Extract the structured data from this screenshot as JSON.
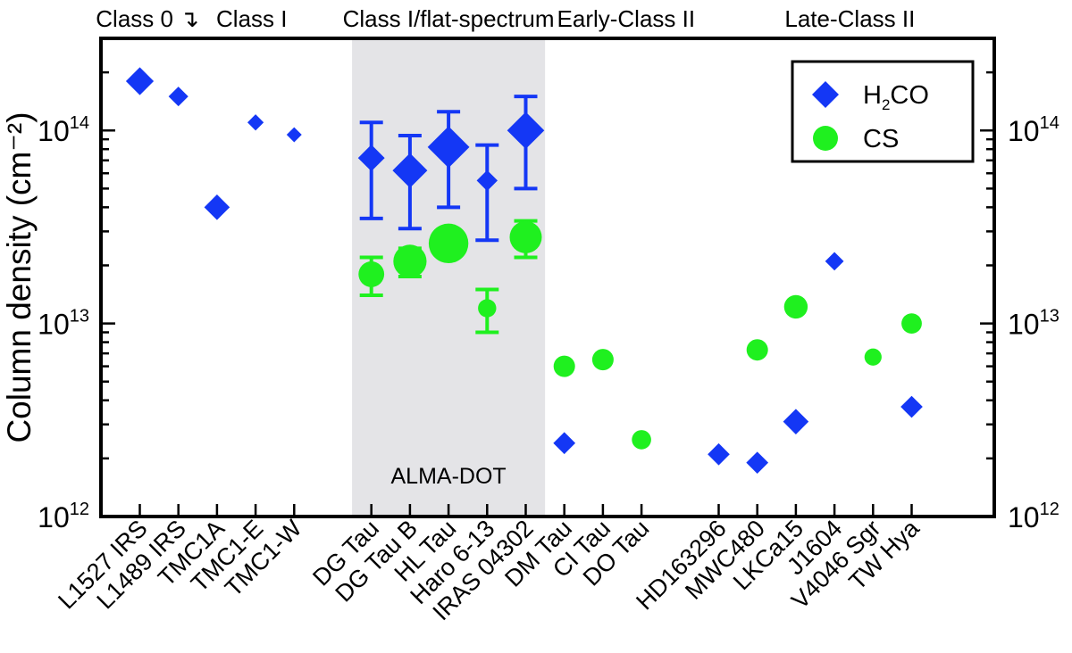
{
  "chart_data": {
    "type": "scatter",
    "yscale": "log",
    "ylim": [
      1000000000000.0,
      300000000000000.0
    ],
    "ylabel": "Column density (cm⁻²)",
    "y_ticks": [
      {
        "value": 1000000000000.0,
        "base": "10",
        "exp": "12"
      },
      {
        "value": 10000000000000.0,
        "base": "10",
        "exp": "13"
      },
      {
        "value": 100000000000000.0,
        "base": "10",
        "exp": "14"
      }
    ],
    "categories": [
      "L1527 IRS",
      "L1489 IRS",
      "TMC1A",
      "TMC1-E",
      "TMC1-W",
      "DG Tau",
      "DG Tau B",
      "HL Tau",
      "Haro 6-13",
      "IRAS 04302",
      "DM Tau",
      "CI Tau",
      "DO Tau",
      "HD163296",
      "MWC480",
      "LKCa15",
      "J1604",
      "V4046 Sgr",
      "TW Hya"
    ],
    "category_positions": [
      1,
      2,
      3,
      4,
      5,
      7,
      8,
      9,
      10,
      11,
      12,
      13,
      14,
      16,
      17,
      18,
      19,
      20,
      21
    ],
    "class_groups": [
      {
        "label": "Class 0 ↴",
        "center": 1.2
      },
      {
        "label": "Class I",
        "center": 3.9
      },
      {
        "label": "Class I/flat-spectrum",
        "center": 9.0
      },
      {
        "label": "Early-Class II",
        "center": 13.6
      },
      {
        "label": "Late-Class II",
        "center": 19.4
      }
    ],
    "highlight": {
      "label": "ALMA-DOT",
      "from": 6.5,
      "to": 11.5,
      "color": "#e4e4e7"
    },
    "series": [
      {
        "name": "H₂CO",
        "legend_main": "H",
        "legend_sub": "2",
        "legend_rest": "CO",
        "marker": "diamond",
        "color": "#1437f5",
        "points": [
          {
            "x": 1,
            "y": 180000000000000.0,
            "size": 1.2
          },
          {
            "x": 2,
            "y": 150000000000000.0,
            "size": 0.85
          },
          {
            "x": 3,
            "y": 40000000000000.0,
            "size": 1.1
          },
          {
            "x": 4,
            "y": 110000000000000.0,
            "size": 0.7
          },
          {
            "x": 5,
            "y": 95000000000000.0,
            "size": 0.65
          },
          {
            "x": 7,
            "y": 72000000000000.0,
            "size": 1.15,
            "err": [
              35000000000000.0,
              110000000000000.0
            ]
          },
          {
            "x": 8,
            "y": 62000000000000.0,
            "size": 1.5,
            "err": [
              31000000000000.0,
              94000000000000.0
            ]
          },
          {
            "x": 9,
            "y": 82000000000000.0,
            "size": 1.8,
            "err": [
              40000000000000.0,
              125000000000000.0
            ]
          },
          {
            "x": 10,
            "y": 55000000000000.0,
            "size": 0.9,
            "err": [
              27000000000000.0,
              84000000000000.0
            ]
          },
          {
            "x": 11,
            "y": 100000000000000.0,
            "size": 1.6,
            "err": [
              50000000000000.0,
              150000000000000.0
            ]
          },
          {
            "x": 12,
            "y": 2400000000000.0,
            "size": 0.95
          },
          {
            "x": 16,
            "y": 2100000000000.0,
            "size": 0.95
          },
          {
            "x": 17,
            "y": 1900000000000.0,
            "size": 0.95
          },
          {
            "x": 18,
            "y": 3100000000000.0,
            "size": 1.1
          },
          {
            "x": 19,
            "y": 21000000000000.0,
            "size": 0.8
          },
          {
            "x": 21,
            "y": 3700000000000.0,
            "size": 0.95
          }
        ]
      },
      {
        "name": "CS",
        "legend_main": "CS",
        "legend_sub": "",
        "legend_rest": "",
        "marker": "circle",
        "color": "#1ff01f",
        "points": [
          {
            "x": 7,
            "y": 18000000000000.0,
            "size": 1.2,
            "err": [
              14000000000000.0,
              22000000000000.0
            ]
          },
          {
            "x": 8,
            "y": 21000000000000.0,
            "size": 1.55,
            "err": [
              17500000000000.0,
              24500000000000.0
            ]
          },
          {
            "x": 9,
            "y": 26000000000000.0,
            "size": 1.85
          },
          {
            "x": 10,
            "y": 12000000000000.0,
            "size": 0.85,
            "err": [
              9000000000000.0,
              15000000000000.0
            ]
          },
          {
            "x": 11,
            "y": 28000000000000.0,
            "size": 1.5,
            "err": [
              22000000000000.0,
              34000000000000.0
            ]
          },
          {
            "x": 12,
            "y": 6000000000000.0,
            "size": 1.0
          },
          {
            "x": 13,
            "y": 6500000000000.0,
            "size": 1.0
          },
          {
            "x": 14,
            "y": 2500000000000.0,
            "size": 0.9
          },
          {
            "x": 17,
            "y": 7300000000000.0,
            "size": 1.0
          },
          {
            "x": 18,
            "y": 12200000000000.0,
            "size": 1.1
          },
          {
            "x": 20,
            "y": 6700000000000.0,
            "size": 0.8
          },
          {
            "x": 21,
            "y": 10000000000000.0,
            "size": 0.95
          }
        ]
      }
    ]
  }
}
